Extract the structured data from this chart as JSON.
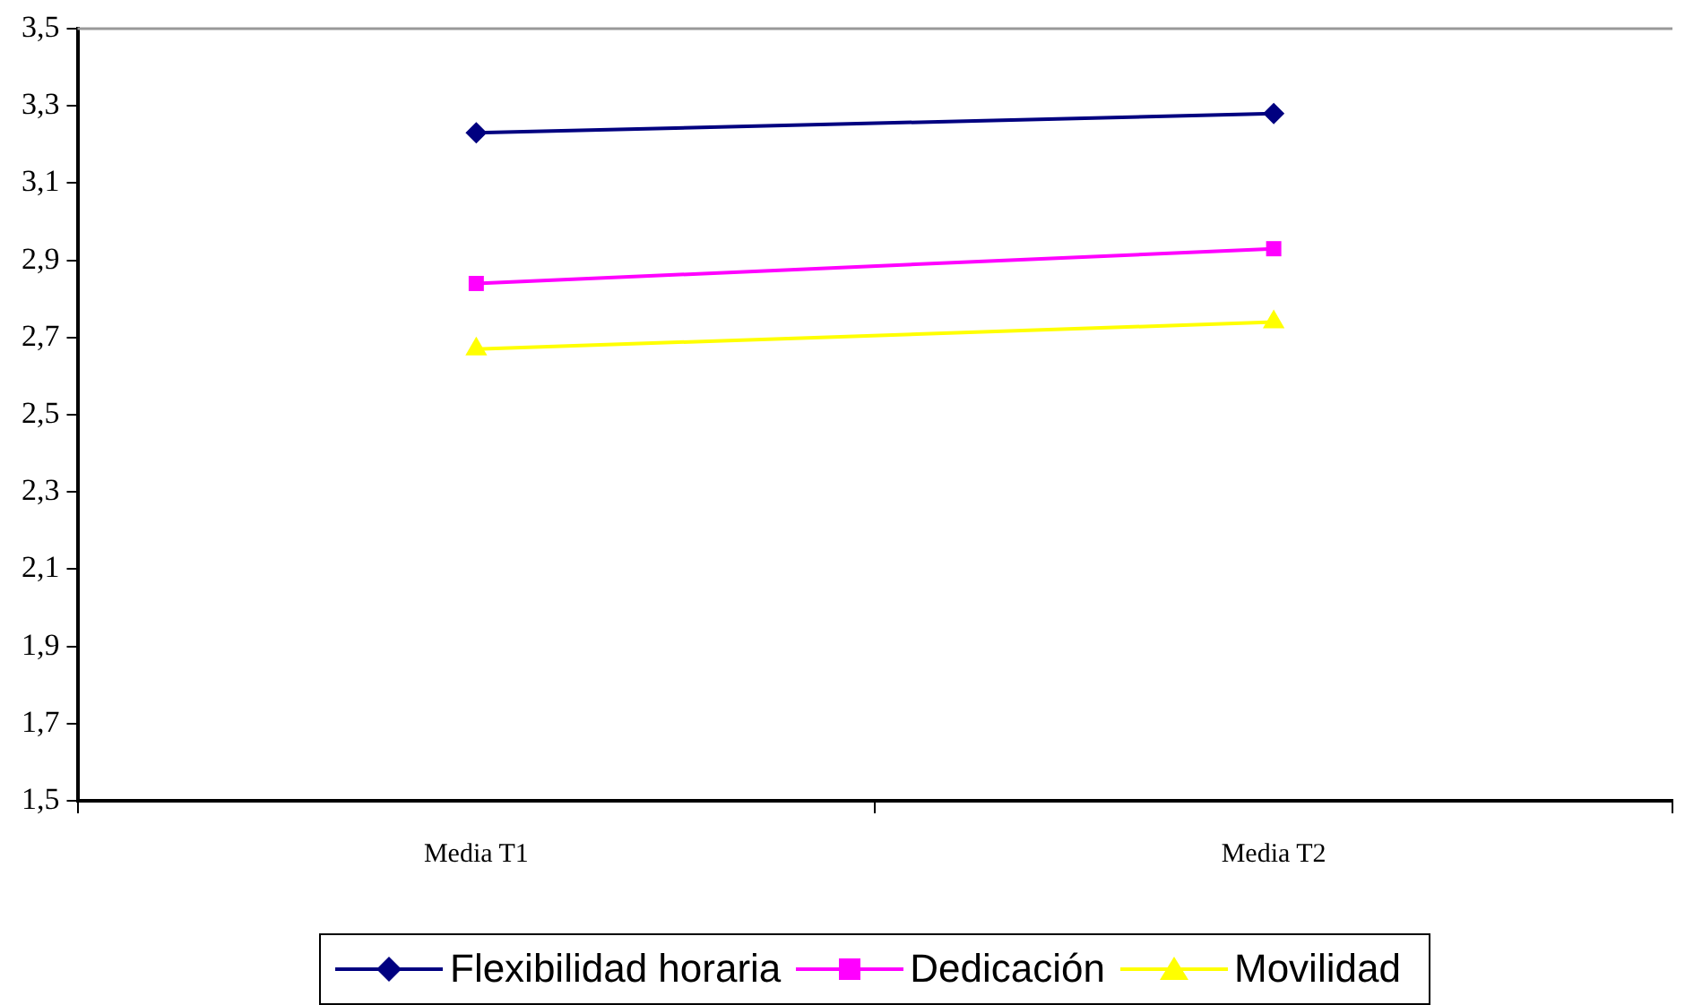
{
  "chart_data": {
    "type": "line",
    "categories": [
      "Media T1",
      "Media T2"
    ],
    "series": [
      {
        "name": "Flexibilidad horaria",
        "color": "#000080",
        "marker": "diamond",
        "values": [
          3.23,
          3.28
        ]
      },
      {
        "name": "Dedicación",
        "color": "#ff00ff",
        "marker": "square",
        "values": [
          2.84,
          2.93
        ]
      },
      {
        "name": "Movilidad",
        "color": "#ffff00",
        "marker": "triangle",
        "values": [
          2.67,
          2.74
        ]
      }
    ],
    "ylim": [
      1.5,
      3.5
    ],
    "yticks": [
      {
        "value": 1.5,
        "label": "1,5"
      },
      {
        "value": 1.7,
        "label": "1,7"
      },
      {
        "value": 1.9,
        "label": "1,9"
      },
      {
        "value": 2.1,
        "label": "2,1"
      },
      {
        "value": 2.3,
        "label": "2,3"
      },
      {
        "value": 2.5,
        "label": "2,5"
      },
      {
        "value": 2.7,
        "label": "2,7"
      },
      {
        "value": 2.9,
        "label": "2,9"
      },
      {
        "value": 3.1,
        "label": "3,1"
      },
      {
        "value": 3.3,
        "label": "3,3"
      },
      {
        "value": 3.5,
        "label": "3,5"
      }
    ],
    "grid": false,
    "legend": "bottom",
    "line_style": "solid"
  }
}
